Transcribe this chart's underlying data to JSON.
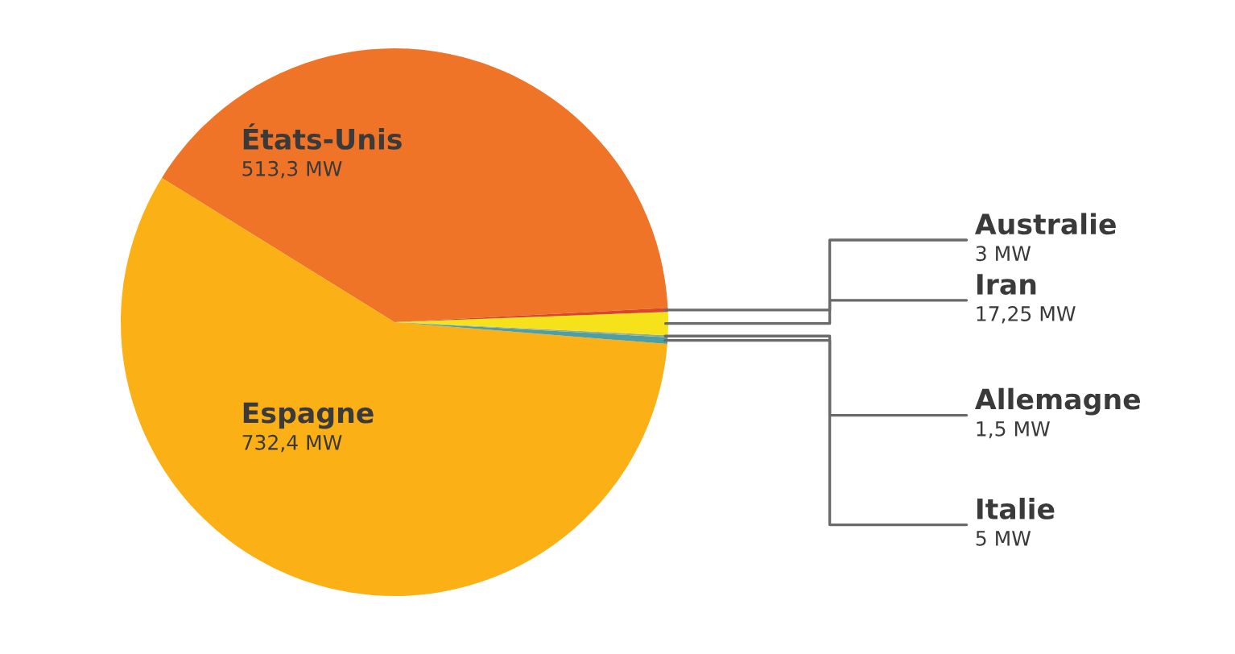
{
  "chart_data": {
    "type": "pie",
    "categories": [
      "États-Unis",
      "Espagne",
      "Italie",
      "Allemagne",
      "Iran",
      "Australie"
    ],
    "values": [
      513.3,
      732.4,
      5,
      1.5,
      17.25,
      3
    ],
    "colors": [
      "#f07427",
      "#fbb016",
      "#4e9fa3",
      "#9aab8a",
      "#f6e21a",
      "#d9472a"
    ],
    "value_labels": [
      "513,3 MW",
      "732,4 MW",
      "5 MW",
      "1,5 MW",
      "17,25 MW",
      "3 MW"
    ],
    "legend": false
  }
}
